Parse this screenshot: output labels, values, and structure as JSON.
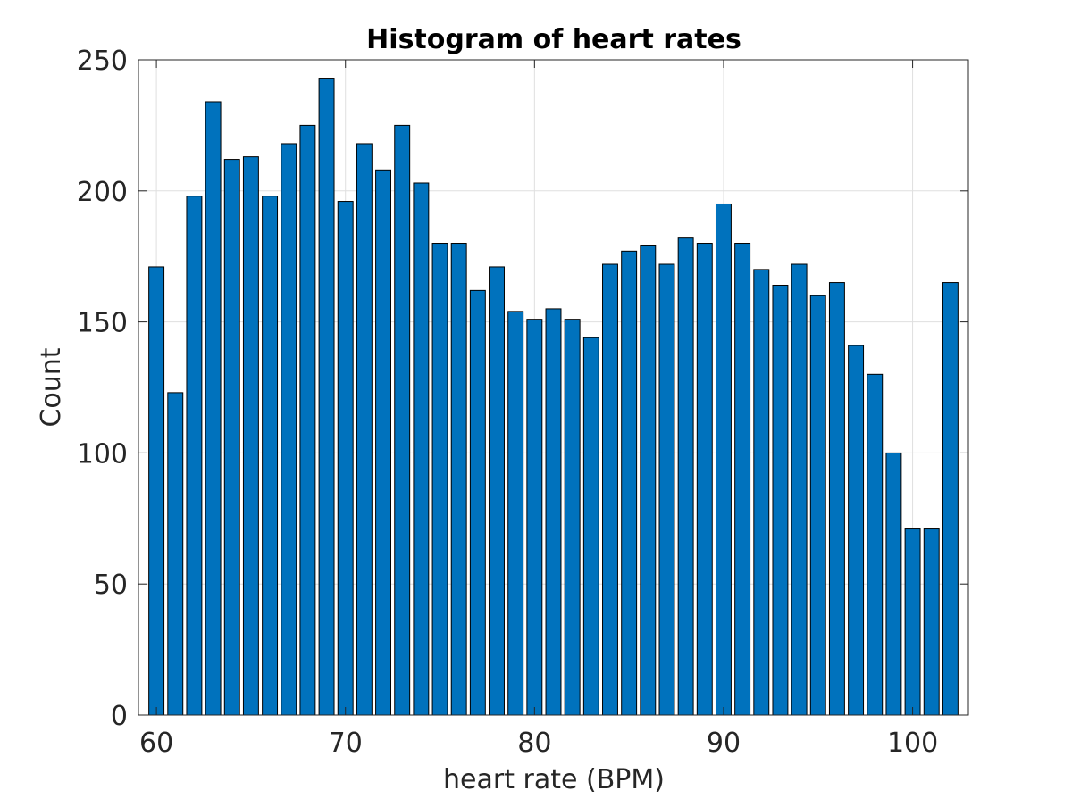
{
  "chart_data": {
    "type": "bar",
    "title": "Histogram of heart rates",
    "xlabel": "heart rate (BPM)",
    "ylabel": "Count",
    "x": [
      60,
      61,
      62,
      63,
      64,
      65,
      66,
      67,
      68,
      69,
      70,
      71,
      72,
      73,
      74,
      75,
      76,
      77,
      78,
      79,
      80,
      81,
      82,
      83,
      84,
      85,
      86,
      87,
      88,
      89,
      90,
      91,
      92,
      93,
      94,
      95,
      96,
      97,
      98,
      99,
      100,
      101,
      102
    ],
    "values": [
      171,
      123,
      198,
      234,
      212,
      213,
      198,
      218,
      225,
      243,
      196,
      218,
      208,
      225,
      203,
      180,
      180,
      162,
      171,
      154,
      151,
      155,
      151,
      144,
      172,
      177,
      179,
      172,
      182,
      180,
      195,
      180,
      170,
      164,
      172,
      160,
      165,
      141,
      130,
      100,
      71,
      71,
      165
    ],
    "xlim": [
      59.05,
      102.95
    ],
    "ylim": [
      0,
      250
    ],
    "xticks": [
      "60",
      "70",
      "80",
      "90",
      "100"
    ],
    "yticks": [
      "0",
      "50",
      "100",
      "150",
      "200",
      "250"
    ],
    "grid": true,
    "bar_color": "#0072BD",
    "bar_edge_color": "#000000"
  }
}
